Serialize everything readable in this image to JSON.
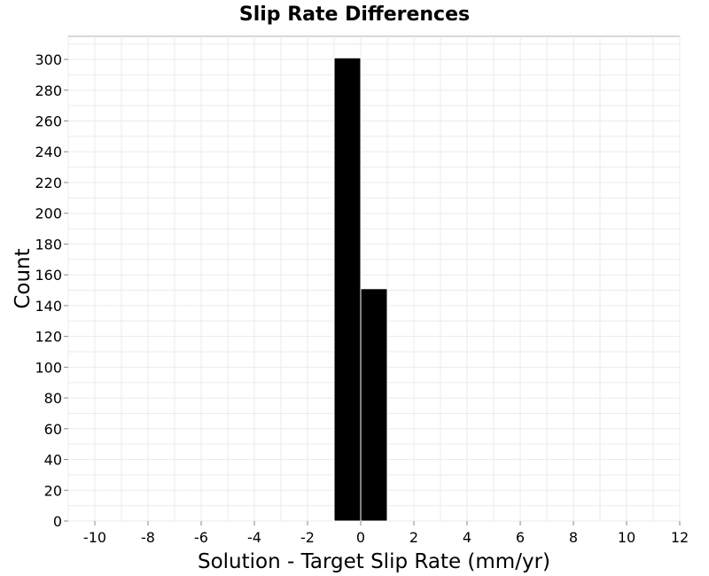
{
  "chart_data": {
    "type": "bar",
    "title": "Slip Rate Differences",
    "xlabel": "Solution - Target Slip Rate (mm/yr)",
    "ylabel": "Count",
    "xlim": [
      -11,
      12
    ],
    "ylim": [
      0,
      315
    ],
    "xticks": [
      -10,
      -8,
      -6,
      -4,
      -2,
      0,
      2,
      4,
      6,
      8,
      10,
      12
    ],
    "yticks": [
      0,
      20,
      40,
      60,
      80,
      100,
      120,
      140,
      160,
      180,
      200,
      220,
      240,
      260,
      280,
      300
    ],
    "grid": true,
    "bins": [
      {
        "x_start": -1,
        "x_end": 0,
        "value": 301
      },
      {
        "x_start": 0,
        "x_end": 1,
        "value": 151
      }
    ],
    "bar_color": "#000000"
  }
}
